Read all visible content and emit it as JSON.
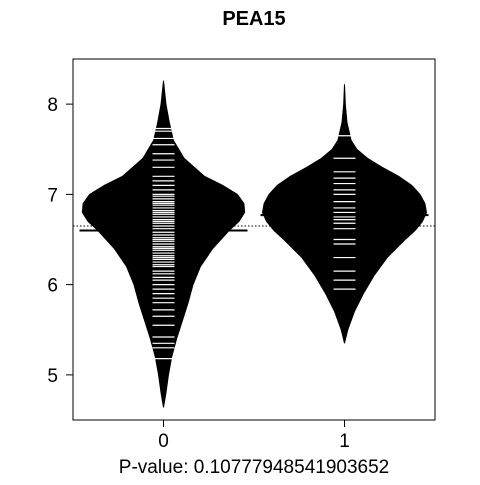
{
  "chart_data": {
    "type": "beanplot",
    "title": "PEA15",
    "xlabel": "P-value: 0.10777948541903652",
    "ylabel": "",
    "categories": [
      "0",
      "1"
    ],
    "ylim": [
      4.5,
      8.5
    ],
    "yticks": [
      5,
      6,
      7,
      8
    ],
    "overall_mean": 6.65,
    "groups": [
      {
        "name": "0",
        "mean": 6.6,
        "density": [
          [
            4.64,
            0.0
          ],
          [
            4.8,
            0.03
          ],
          [
            5.0,
            0.06
          ],
          [
            5.2,
            0.1
          ],
          [
            5.4,
            0.16
          ],
          [
            5.6,
            0.23
          ],
          [
            5.8,
            0.3
          ],
          [
            6.0,
            0.36
          ],
          [
            6.2,
            0.45
          ],
          [
            6.4,
            0.6
          ],
          [
            6.6,
            0.8
          ],
          [
            6.7,
            0.92
          ],
          [
            6.8,
            0.99
          ],
          [
            6.9,
            0.98
          ],
          [
            7.0,
            0.9
          ],
          [
            7.1,
            0.72
          ],
          [
            7.2,
            0.5
          ],
          [
            7.4,
            0.25
          ],
          [
            7.6,
            0.12
          ],
          [
            7.8,
            0.07
          ],
          [
            8.0,
            0.03
          ],
          [
            8.26,
            0.0
          ]
        ],
        "observations": [
          5.18,
          5.3,
          5.35,
          5.42,
          5.55,
          5.65,
          5.72,
          5.8,
          5.85,
          5.9,
          5.95,
          6.0,
          6.05,
          6.08,
          6.12,
          6.15,
          6.2,
          6.22,
          6.25,
          6.28,
          6.3,
          6.32,
          6.35,
          6.38,
          6.4,
          6.42,
          6.45,
          6.48,
          6.5,
          6.52,
          6.55,
          6.58,
          6.6,
          6.62,
          6.65,
          6.68,
          6.7,
          6.72,
          6.75,
          6.78,
          6.8,
          6.82,
          6.85,
          6.88,
          6.9,
          6.92,
          6.95,
          6.98,
          7.0,
          7.05,
          7.1,
          7.15,
          7.2,
          7.3,
          7.38,
          7.45,
          7.55,
          7.62,
          7.7,
          7.73
        ]
      },
      {
        "name": "1",
        "mean": 6.77,
        "density": [
          [
            5.35,
            0.0
          ],
          [
            5.5,
            0.04
          ],
          [
            5.7,
            0.12
          ],
          [
            5.9,
            0.23
          ],
          [
            6.1,
            0.36
          ],
          [
            6.3,
            0.52
          ],
          [
            6.5,
            0.74
          ],
          [
            6.6,
            0.86
          ],
          [
            6.7,
            0.95
          ],
          [
            6.8,
            1.0
          ],
          [
            6.9,
            0.98
          ],
          [
            7.0,
            0.92
          ],
          [
            7.1,
            0.82
          ],
          [
            7.2,
            0.66
          ],
          [
            7.3,
            0.46
          ],
          [
            7.4,
            0.28
          ],
          [
            7.5,
            0.15
          ],
          [
            7.6,
            0.08
          ],
          [
            7.8,
            0.03
          ],
          [
            8.0,
            0.01
          ],
          [
            8.22,
            0.0
          ]
        ],
        "observations": [
          5.95,
          6.05,
          6.15,
          6.3,
          6.45,
          6.5,
          6.62,
          6.68,
          6.72,
          6.75,
          6.8,
          6.85,
          6.92,
          7.0,
          7.05,
          7.12,
          7.18,
          7.25,
          7.4,
          7.65
        ]
      }
    ]
  }
}
